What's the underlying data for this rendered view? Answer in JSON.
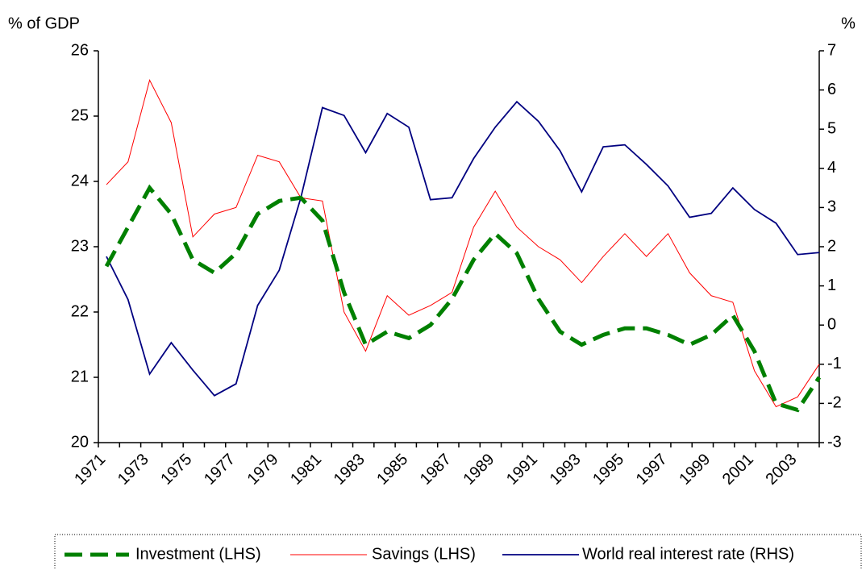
{
  "chart_data": {
    "type": "line",
    "ylabel": "% of GDP",
    "y2label": "%",
    "categories": [
      "1971",
      null,
      "1973",
      null,
      "1975",
      null,
      "1977",
      null,
      "1979",
      null,
      "1981",
      null,
      "1983",
      null,
      "1985",
      null,
      "1987",
      null,
      "1989",
      null,
      "1991",
      null,
      "1993",
      null,
      "1995",
      null,
      "1997",
      null,
      "1999",
      null,
      "2001",
      null,
      "2003",
      null
    ],
    "series": [
      {
        "name": "Investment (LHS)",
        "color": "#008000",
        "values": [
          22.7,
          23.3,
          23.9,
          23.5,
          22.8,
          22.6,
          22.9,
          23.5,
          23.7,
          23.75,
          23.4,
          22.3,
          21.5,
          21.7,
          21.6,
          21.8,
          22.2,
          22.8,
          23.2,
          22.9,
          22.2,
          21.7,
          21.5,
          21.65,
          21.75,
          21.75,
          21.65,
          21.5,
          21.65,
          21.95,
          21.4,
          20.6,
          20.5,
          21.0
        ]
      },
      {
        "name": "Savings (LHS)",
        "color": "#ff0000",
        "values": [
          23.95,
          24.3,
          25.55,
          24.9,
          23.15,
          23.5,
          23.6,
          24.4,
          24.3,
          23.75,
          23.7,
          22.0,
          21.4,
          22.25,
          21.95,
          22.1,
          22.3,
          23.3,
          23.85,
          23.3,
          23.0,
          22.8,
          22.45,
          22.85,
          23.2,
          22.85,
          23.2,
          22.6,
          22.25,
          22.15,
          21.1,
          20.55,
          20.7,
          21.2
        ]
      },
      {
        "name": "World real interest rate (RHS)",
        "color": "#000080",
        "axis": "y2",
        "values": [
          1.75,
          0.65,
          -1.25,
          -0.45,
          -1.15,
          -1.8,
          -1.5,
          0.5,
          1.4,
          3.25,
          5.55,
          5.35,
          4.4,
          5.4,
          5.05,
          3.2,
          3.25,
          4.25,
          5.05,
          5.7,
          5.2,
          4.45,
          3.4,
          4.55,
          4.6,
          4.1,
          3.55,
          2.75,
          2.85,
          3.5,
          2.95,
          2.6,
          1.8,
          1.85
        ]
      }
    ],
    "ylim": [
      20,
      26
    ],
    "yticks": [
      20,
      21,
      22,
      23,
      24,
      25,
      26
    ],
    "y2lim": [
      -3,
      7
    ],
    "y2ticks": [
      -3,
      -2,
      -1,
      0,
      1,
      2,
      3,
      4,
      5,
      6,
      7
    ]
  }
}
